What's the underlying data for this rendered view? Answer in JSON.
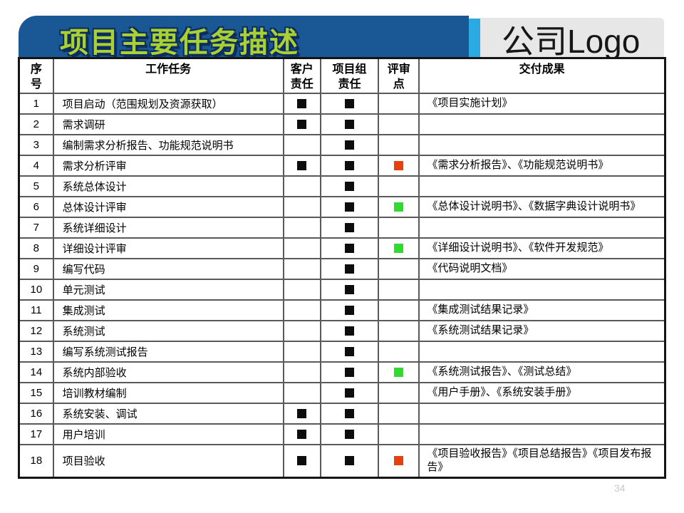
{
  "slide": {
    "title": "项目主要任务描述",
    "logo_text": "公司Logo",
    "page_number": "34"
  },
  "colors": {
    "banner_blue": "#1a5795",
    "strip_blue": "#2aa9e2",
    "logo_gray": "#e7e7e7",
    "title_green": "#a9d133",
    "marker_black": "#0d0d0d",
    "review_red": "#e8400d",
    "review_green": "#2edb2e"
  },
  "icons": {
    "responsibility_marker": "filled-square",
    "review_marker": "filled-square"
  },
  "table": {
    "headers": [
      "序\n号",
      "工作任务",
      "客户\n责任",
      "项目组\n责任",
      "评审\n点",
      "交付成果"
    ],
    "rows": [
      {
        "no": "1",
        "task": "项目启动（范围规划及资源获取）",
        "customer": true,
        "team": true,
        "review": "",
        "deliverable": "《项目实施计划》"
      },
      {
        "no": "2",
        "task": "需求调研",
        "customer": true,
        "team": true,
        "review": "",
        "deliverable": ""
      },
      {
        "no": "3",
        "task": "编制需求分析报告、功能规范说明书",
        "customer": false,
        "team": true,
        "review": "",
        "deliverable": ""
      },
      {
        "no": "4",
        "task": "需求分析评审",
        "customer": true,
        "team": true,
        "review": "red",
        "deliverable": "《需求分析报告》、《功能规范说明书》"
      },
      {
        "no": "5",
        "task": "系统总体设计",
        "customer": false,
        "team": true,
        "review": "",
        "deliverable": ""
      },
      {
        "no": "6",
        "task": "总体设计评审",
        "customer": false,
        "team": true,
        "review": "green",
        "deliverable": "《总体设计说明书》、《数据字典设计说明书》"
      },
      {
        "no": "7",
        "task": "系统详细设计",
        "customer": false,
        "team": true,
        "review": "",
        "deliverable": ""
      },
      {
        "no": "8",
        "task": "详细设计评审",
        "customer": false,
        "team": true,
        "review": "green",
        "deliverable": "《详细设计说明书》、《软件开发规范》"
      },
      {
        "no": "9",
        "task": "编写代码",
        "customer": false,
        "team": true,
        "review": "",
        "deliverable": "《代码说明文档》"
      },
      {
        "no": "10",
        "task": "单元测试",
        "customer": false,
        "team": true,
        "review": "",
        "deliverable": ""
      },
      {
        "no": "11",
        "task": "集成测试",
        "customer": false,
        "team": true,
        "review": "",
        "deliverable": "《集成测试结果记录》"
      },
      {
        "no": "12",
        "task": "系统测试",
        "customer": false,
        "team": true,
        "review": "",
        "deliverable": "《系统测试结果记录》"
      },
      {
        "no": "13",
        "task": "编写系统测试报告",
        "customer": false,
        "team": true,
        "review": "",
        "deliverable": ""
      },
      {
        "no": "14",
        "task": "系统内部验收",
        "customer": false,
        "team": true,
        "review": "green",
        "deliverable": "《系统测试报告》、《测试总结》"
      },
      {
        "no": "15",
        "task": "培训教材编制",
        "customer": false,
        "team": true,
        "review": "",
        "deliverable": "《用户手册》、《系统安装手册》"
      },
      {
        "no": "16",
        "task": "系统安装、调试",
        "customer": true,
        "team": true,
        "review": "",
        "deliverable": ""
      },
      {
        "no": "17",
        "task": "用户培训",
        "customer": true,
        "team": true,
        "review": "",
        "deliverable": ""
      },
      {
        "no": "18",
        "task": "项目验收",
        "customer": true,
        "team": true,
        "review": "red",
        "deliverable": "《项目验收报告》《项目总结报告》《项目发布报告》"
      }
    ]
  }
}
